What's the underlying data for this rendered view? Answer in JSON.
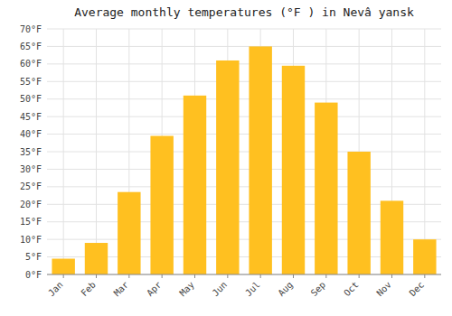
{
  "chart_data": {
    "type": "bar",
    "title": "Average monthly temperatures (°F ) in Nevâ yansk",
    "categories": [
      "Jan",
      "Feb",
      "Mar",
      "Apr",
      "May",
      "Jun",
      "Jul",
      "Aug",
      "Sep",
      "Oct",
      "Nov",
      "Dec"
    ],
    "values": [
      4.5,
      9,
      23.5,
      39.5,
      51,
      61,
      65,
      59.5,
      49,
      35,
      21,
      10
    ],
    "color": "#FFC020",
    "ylim": [
      0,
      70
    ],
    "yticks": [
      {
        "value": 0,
        "label": "0°F"
      },
      {
        "value": 5,
        "label": "5°F"
      },
      {
        "value": 10,
        "label": "10°F"
      },
      {
        "value": 15,
        "label": "15°F"
      },
      {
        "value": 20,
        "label": "20°F"
      },
      {
        "value": 25,
        "label": "25°F"
      },
      {
        "value": 30,
        "label": "30°F"
      },
      {
        "value": 35,
        "label": "35°F"
      },
      {
        "value": 40,
        "label": "40°F"
      },
      {
        "value": 45,
        "label": "45°F"
      },
      {
        "value": 50,
        "label": "50°F"
      },
      {
        "value": 55,
        "label": "55°F"
      },
      {
        "value": 60,
        "label": "60°F"
      },
      {
        "value": 65,
        "label": "65°F"
      },
      {
        "value": 70,
        "label": "70°F"
      }
    ],
    "grid": true
  }
}
